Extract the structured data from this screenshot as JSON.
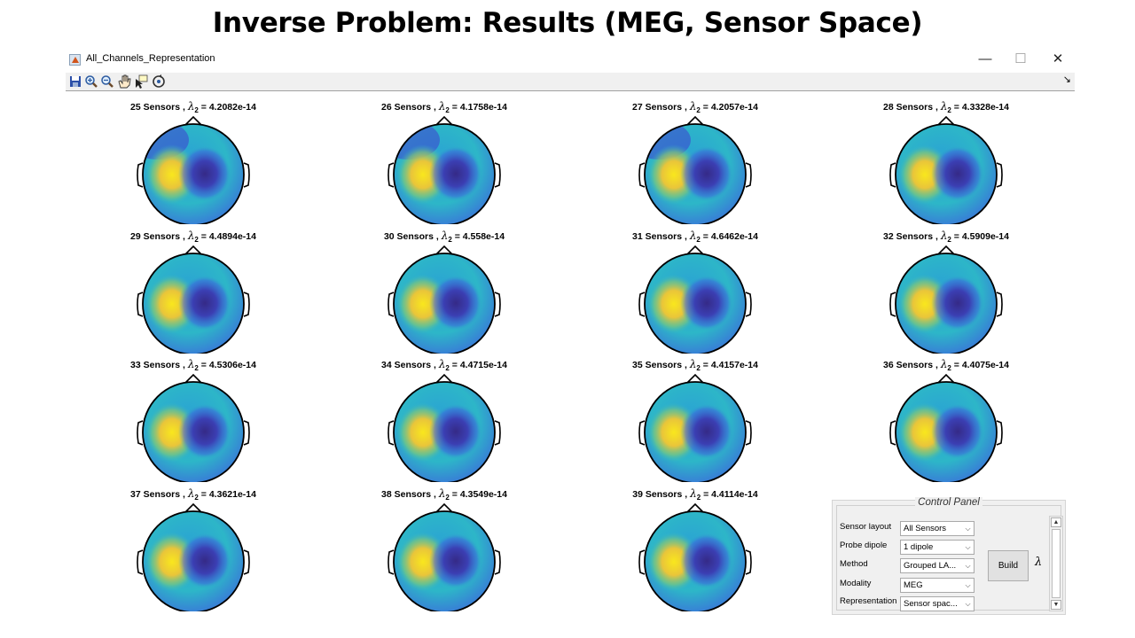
{
  "slide": {
    "title": "Inverse Problem: Results (MEG, Sensor Space)"
  },
  "window": {
    "title": "All_Channels_Representation",
    "controls": {
      "minimize": "—",
      "maximize": "☐",
      "close": "✕"
    }
  },
  "toolbar": {
    "buttons": [
      "save-icon",
      "zoom-in-icon",
      "zoom-out-icon",
      "pan-hand-icon",
      "data-cursor-icon",
      "rotate-icon"
    ],
    "dock": "↘"
  },
  "colors": {
    "topo_high": "#f9e71d",
    "topo_mid": "#2db6c8",
    "topo_low": "#352a87",
    "head_outline": "#000000"
  },
  "plots": [
    {
      "title": "25 Sensors , ",
      "lambda_value": " = 4.2082e-14"
    },
    {
      "title": "26 Sensors , ",
      "lambda_value": " = 4.1758e-14"
    },
    {
      "title": "27 Sensors , ",
      "lambda_value": " = 4.2057e-14"
    },
    {
      "title": "28 Sensors , ",
      "lambda_value": " = 4.3328e-14"
    },
    {
      "title": "29 Sensors , ",
      "lambda_value": " = 4.4894e-14"
    },
    {
      "title": "30 Sensors , ",
      "lambda_value": " = 4.558e-14"
    },
    {
      "title": "31 Sensors , ",
      "lambda_value": " = 4.6462e-14"
    },
    {
      "title": "32 Sensors , ",
      "lambda_value": " = 4.5909e-14"
    },
    {
      "title": "33 Sensors , ",
      "lambda_value": " = 4.5306e-14"
    },
    {
      "title": "34 Sensors , ",
      "lambda_value": " = 4.4715e-14"
    },
    {
      "title": "35 Sensors , ",
      "lambda_value": " = 4.4157e-14"
    },
    {
      "title": "36 Sensors , ",
      "lambda_value": " = 4.4075e-14"
    },
    {
      "title": "37 Sensors , ",
      "lambda_value": " = 4.3621e-14"
    },
    {
      "title": "38 Sensors , ",
      "lambda_value": " = 4.3549e-14"
    },
    {
      "title": "39 Sensors , ",
      "lambda_value": " = 4.4114e-14"
    }
  ],
  "lambda_symbol": "λ",
  "lambda_subscript": "2",
  "control_panel": {
    "title": "Control Panel",
    "fields": [
      {
        "label": "Sensor layout",
        "value": "All Sensors"
      },
      {
        "label": "Probe dipole",
        "value": "1 dipole"
      },
      {
        "label": "Method",
        "value": "Grouped LA..."
      },
      {
        "label": "Modality",
        "value": "MEG"
      },
      {
        "label": "Representation",
        "value": "Sensor spac..."
      }
    ],
    "build_label": "Build",
    "lambda_label": "λ",
    "dropdown_arrow": "⌵",
    "scroll_up": "▲",
    "scroll_down": "▼"
  }
}
